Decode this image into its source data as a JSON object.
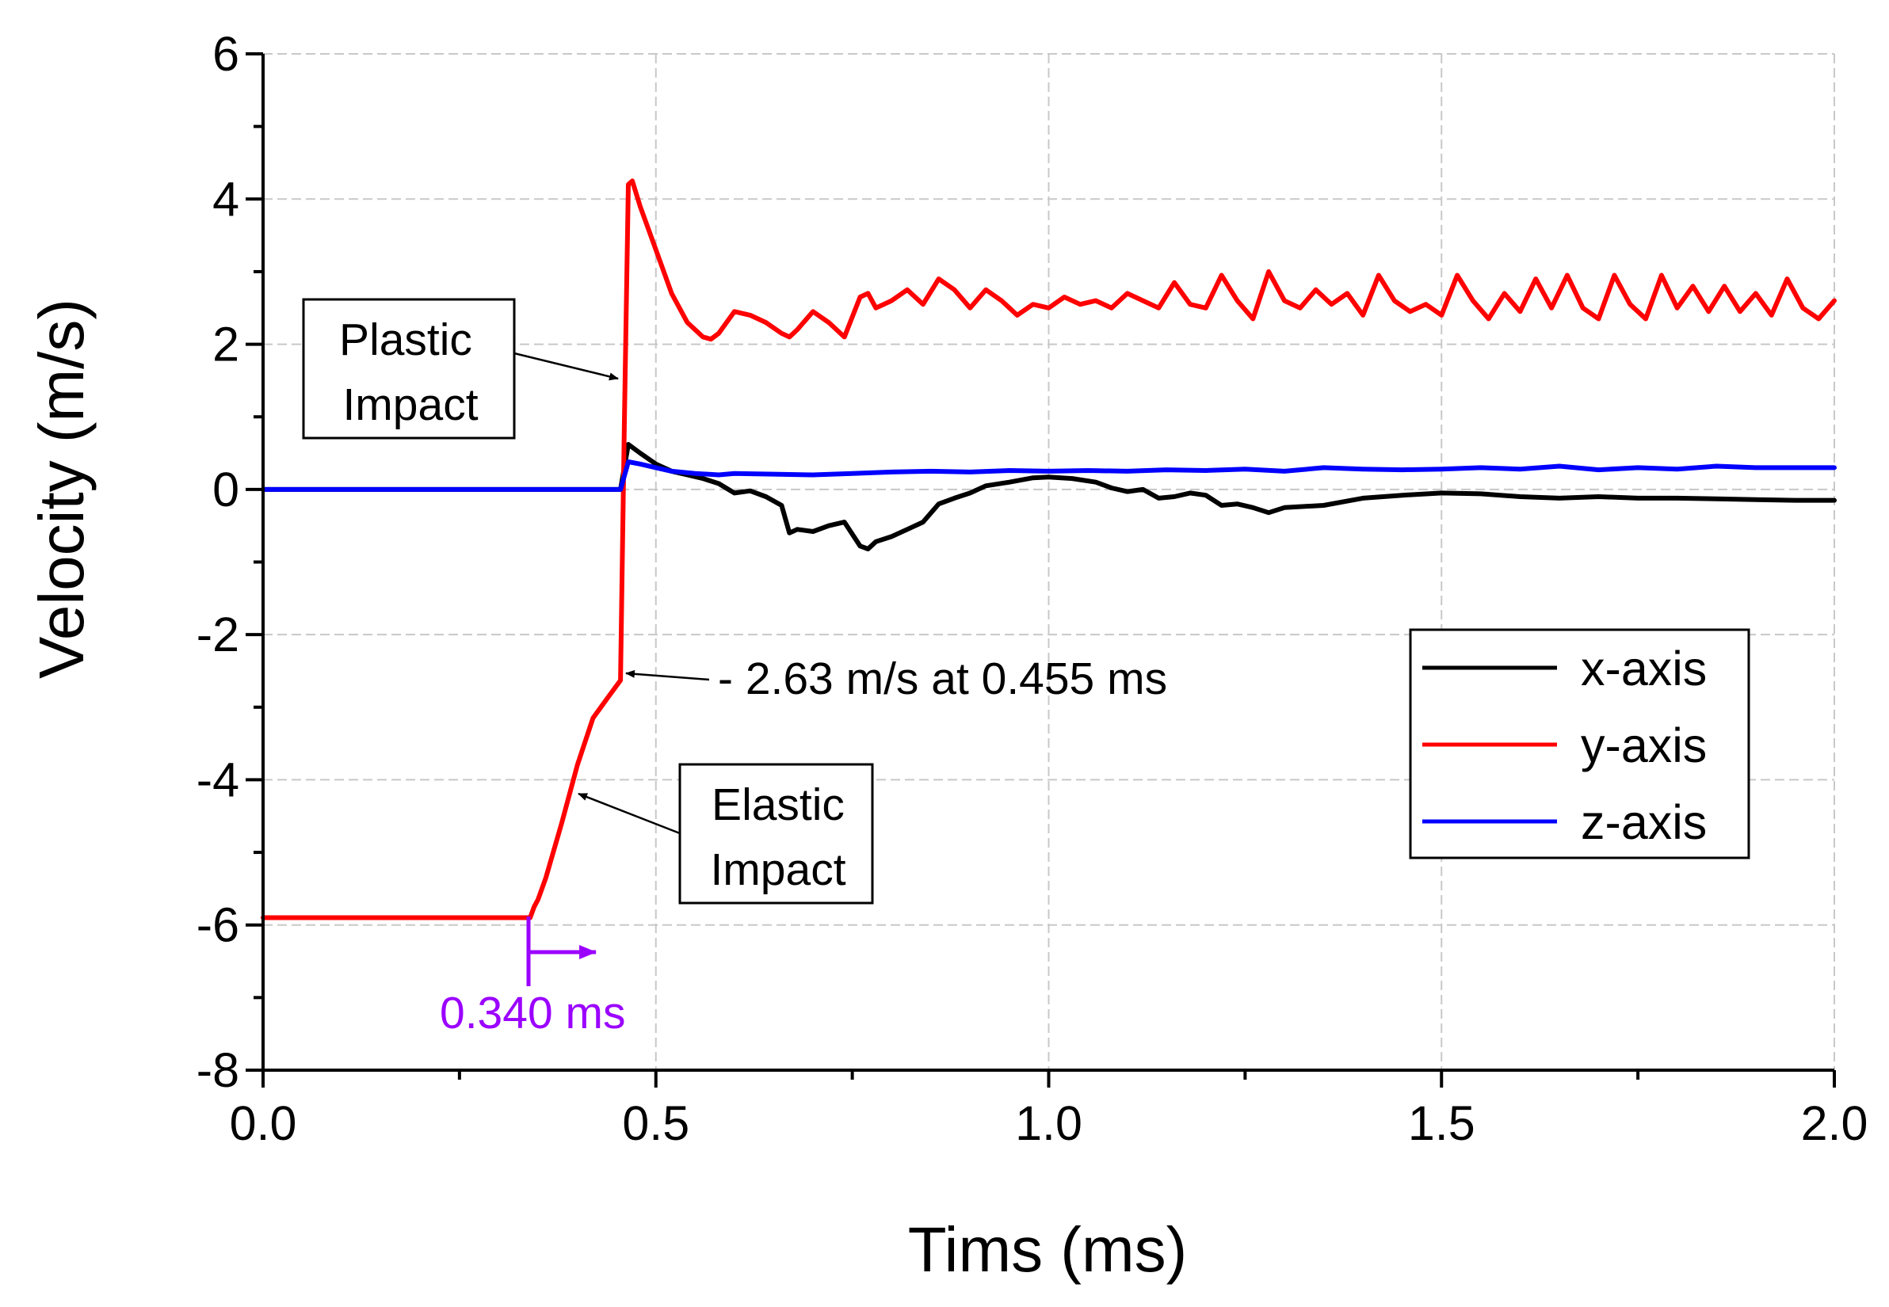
{
  "chart_data": {
    "type": "line",
    "title": "",
    "xlabel": "Tims (ms)",
    "ylabel": "Velocity (m/s)",
    "xlim": [
      0.0,
      2.0
    ],
    "ylim": [
      -8,
      6
    ],
    "xticks": [
      0.0,
      0.5,
      1.0,
      1.5,
      2.0
    ],
    "xtick_labels": [
      "0.0",
      "0.5",
      "1.0",
      "1.5",
      "2.0"
    ],
    "yticks": [
      -8,
      -6,
      -4,
      -2,
      0,
      2,
      4,
      6
    ],
    "ytick_labels": [
      "-8",
      "-6",
      "-4",
      "-2",
      "0",
      "2",
      "4",
      "6"
    ],
    "grid": true,
    "legend_position": "right",
    "series": [
      {
        "name": "x-axis",
        "color": "#000000",
        "x": [
          0.0,
          0.455,
          0.465,
          0.48,
          0.5,
          0.52,
          0.54,
          0.56,
          0.58,
          0.6,
          0.62,
          0.64,
          0.66,
          0.67,
          0.68,
          0.7,
          0.72,
          0.74,
          0.76,
          0.77,
          0.78,
          0.8,
          0.82,
          0.84,
          0.86,
          0.88,
          0.9,
          0.92,
          0.95,
          0.98,
          1.0,
          1.03,
          1.06,
          1.08,
          1.1,
          1.12,
          1.14,
          1.16,
          1.18,
          1.2,
          1.22,
          1.24,
          1.26,
          1.28,
          1.3,
          1.35,
          1.4,
          1.45,
          1.5,
          1.55,
          1.6,
          1.65,
          1.7,
          1.75,
          1.8,
          1.85,
          1.9,
          1.95,
          2.0
        ],
        "values": [
          0.0,
          0.0,
          0.62,
          0.5,
          0.35,
          0.25,
          0.2,
          0.15,
          0.08,
          -0.05,
          -0.02,
          -0.1,
          -0.22,
          -0.6,
          -0.55,
          -0.58,
          -0.5,
          -0.45,
          -0.78,
          -0.82,
          -0.72,
          -0.65,
          -0.55,
          -0.45,
          -0.2,
          -0.12,
          -0.05,
          0.05,
          0.1,
          0.16,
          0.17,
          0.15,
          0.1,
          0.02,
          -0.03,
          0.0,
          -0.12,
          -0.1,
          -0.05,
          -0.08,
          -0.22,
          -0.2,
          -0.25,
          -0.32,
          -0.25,
          -0.22,
          -0.12,
          -0.08,
          -0.05,
          -0.06,
          -0.1,
          -0.12,
          -0.1,
          -0.12,
          -0.12,
          -0.13,
          -0.14,
          -0.15,
          -0.15
        ]
      },
      {
        "name": "y-axis",
        "color": "#ff0000",
        "x": [
          0.0,
          0.34,
          0.345,
          0.35,
          0.36,
          0.38,
          0.4,
          0.42,
          0.44,
          0.455,
          0.46,
          0.465,
          0.47,
          0.48,
          0.5,
          0.52,
          0.54,
          0.56,
          0.57,
          0.58,
          0.6,
          0.62,
          0.64,
          0.66,
          0.67,
          0.68,
          0.7,
          0.72,
          0.74,
          0.76,
          0.77,
          0.78,
          0.8,
          0.82,
          0.84,
          0.86,
          0.88,
          0.9,
          0.92,
          0.94,
          0.96,
          0.98,
          1.0,
          1.02,
          1.04,
          1.06,
          1.08,
          1.1,
          1.12,
          1.14,
          1.16,
          1.18,
          1.2,
          1.22,
          1.24,
          1.26,
          1.28,
          1.3,
          1.32,
          1.34,
          1.36,
          1.38,
          1.4,
          1.42,
          1.44,
          1.46,
          1.48,
          1.5,
          1.52,
          1.54,
          1.56,
          1.58,
          1.6,
          1.62,
          1.64,
          1.66,
          1.68,
          1.7,
          1.72,
          1.74,
          1.76,
          1.78,
          1.8,
          1.82,
          1.84,
          1.86,
          1.88,
          1.9,
          1.92,
          1.94,
          1.96,
          1.98,
          2.0
        ],
        "values": [
          -5.9,
          -5.9,
          -5.75,
          -5.65,
          -5.35,
          -4.6,
          -3.8,
          -3.15,
          -2.85,
          -2.63,
          1.0,
          4.2,
          4.25,
          3.9,
          3.3,
          2.7,
          2.3,
          2.1,
          2.07,
          2.15,
          2.45,
          2.4,
          2.3,
          2.15,
          2.1,
          2.2,
          2.45,
          2.3,
          2.1,
          2.65,
          2.7,
          2.5,
          2.6,
          2.75,
          2.55,
          2.9,
          2.75,
          2.5,
          2.75,
          2.6,
          2.4,
          2.55,
          2.5,
          2.65,
          2.55,
          2.6,
          2.5,
          2.7,
          2.6,
          2.5,
          2.85,
          2.55,
          2.5,
          2.95,
          2.6,
          2.35,
          3.0,
          2.6,
          2.5,
          2.75,
          2.55,
          2.7,
          2.4,
          2.95,
          2.6,
          2.45,
          2.55,
          2.4,
          2.95,
          2.6,
          2.35,
          2.7,
          2.45,
          2.9,
          2.5,
          2.95,
          2.5,
          2.35,
          2.95,
          2.55,
          2.35,
          2.95,
          2.5,
          2.8,
          2.45,
          2.8,
          2.45,
          2.7,
          2.4,
          2.9,
          2.5,
          2.35,
          2.6
        ]
      },
      {
        "name": "z-axis",
        "color": "#0000ff",
        "x": [
          0.0,
          0.455,
          0.465,
          0.48,
          0.5,
          0.52,
          0.55,
          0.58,
          0.6,
          0.65,
          0.7,
          0.75,
          0.8,
          0.85,
          0.9,
          0.95,
          1.0,
          1.05,
          1.1,
          1.15,
          1.2,
          1.25,
          1.3,
          1.35,
          1.4,
          1.45,
          1.5,
          1.55,
          1.6,
          1.65,
          1.7,
          1.75,
          1.8,
          1.85,
          1.9,
          1.95,
          2.0
        ],
        "values": [
          0.0,
          0.0,
          0.38,
          0.35,
          0.3,
          0.25,
          0.22,
          0.2,
          0.22,
          0.21,
          0.2,
          0.22,
          0.24,
          0.25,
          0.24,
          0.26,
          0.25,
          0.26,
          0.25,
          0.27,
          0.26,
          0.28,
          0.25,
          0.3,
          0.28,
          0.27,
          0.28,
          0.3,
          0.28,
          0.32,
          0.27,
          0.3,
          0.28,
          0.32,
          0.3,
          0.3,
          0.3
        ]
      }
    ],
    "annotations": [
      {
        "text_lines": [
          "Plastic",
          "Impact"
        ],
        "boxed": true
      },
      {
        "text_lines": [
          "Elastic",
          "Impact"
        ],
        "boxed": true
      },
      {
        "text": "- 2.63 m/s at 0.455 ms"
      },
      {
        "text": "0.340 ms",
        "color": "#9b00ff"
      }
    ]
  }
}
